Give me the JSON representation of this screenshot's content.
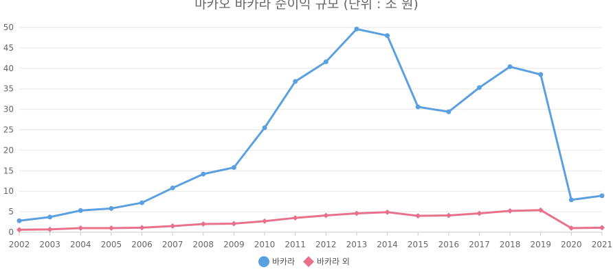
{
  "chart_data": {
    "type": "line",
    "title": "마카오 바카라 순이익 규모 (단위 : 조 원)",
    "xlabel": "",
    "ylabel": "",
    "ylim": [
      0,
      50
    ],
    "y_ticks": [
      "0",
      "5",
      "10",
      "15",
      "20",
      "25",
      "30",
      "35",
      "40",
      "45",
      "50"
    ],
    "grid": true,
    "legend_position": "bottom",
    "x": [
      "2002",
      "2003",
      "2004",
      "2005",
      "2006",
      "2007",
      "2008",
      "2009",
      "2010",
      "2011",
      "2012",
      "2013",
      "2014",
      "2015",
      "2016",
      "2017",
      "2018",
      "2019",
      "2020",
      "2021"
    ],
    "series": [
      {
        "name": "바카라",
        "color": "#5aa0e0",
        "marker": "circle",
        "values": [
          2.8,
          3.7,
          5.3,
          5.8,
          7.2,
          10.8,
          14.2,
          15.8,
          25.5,
          36.8,
          41.6,
          49.6,
          48.0,
          30.6,
          29.4,
          35.3,
          40.4,
          38.5,
          7.9,
          8.9
        ]
      },
      {
        "name": "바카라 외",
        "color": "#e8708a",
        "marker": "diamond",
        "values": [
          0.6,
          0.7,
          1.0,
          1.0,
          1.1,
          1.5,
          2.0,
          2.1,
          2.7,
          3.5,
          4.1,
          4.6,
          4.9,
          4.0,
          4.1,
          4.6,
          5.2,
          5.4,
          1.0,
          1.1
        ]
      }
    ]
  }
}
